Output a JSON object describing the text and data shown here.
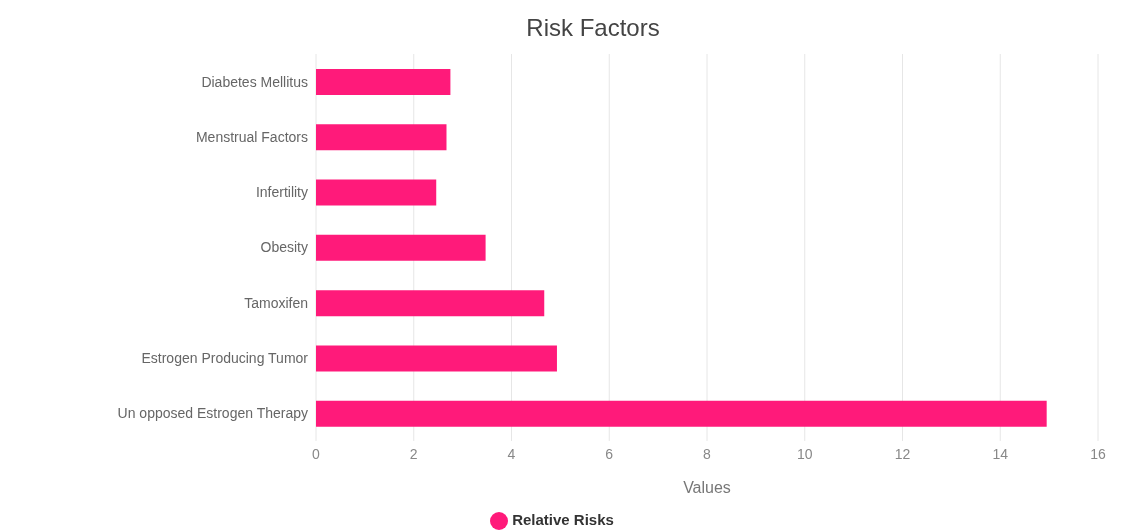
{
  "chart_data": {
    "type": "bar",
    "orientation": "horizontal",
    "title": "Risk Factors",
    "xlabel": "Values",
    "categories": [
      "Diabetes Mellitus",
      "Menstrual Factors",
      "Infertility",
      "Obesity",
      "Tamoxifen",
      "Estrogen Producing Tumor",
      "Un opposed Estrogen Therapy"
    ],
    "series": [
      {
        "name": "Relative Risks",
        "color": "#ff1a7a",
        "values": [
          2.75,
          2.67,
          2.46,
          3.47,
          4.67,
          4.93,
          14.95
        ]
      }
    ],
    "xlim": [
      0,
      16
    ],
    "xticks": [
      0,
      2,
      4,
      6,
      8,
      10,
      12,
      14,
      16
    ],
    "grid": "x",
    "legend": "bottom"
  }
}
